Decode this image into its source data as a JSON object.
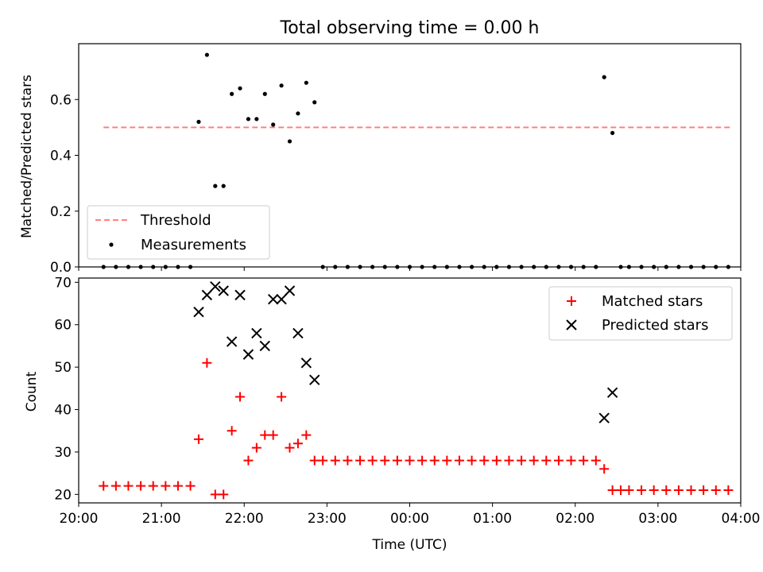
{
  "figure_title": "Total observing time = 0.00 h",
  "chart_data": [
    {
      "type": "scatter",
      "ylabel": "Matched/Predicted stars",
      "xlabel": "",
      "xlim": [
        "20:00",
        "04:00"
      ],
      "ylim": [
        0,
        0.8
      ],
      "yticks": [
        0.0,
        0.2,
        0.4,
        0.6
      ],
      "ytick_labels": [
        "0.0",
        "0.2",
        "0.4",
        "0.6"
      ],
      "legend_position": "lower-left",
      "threshold": {
        "name": "Threshold",
        "value": 0.5,
        "x_start": "20:18",
        "x_end": "03:54",
        "color": "#ff8080"
      },
      "series": [
        {
          "name": "Measurements",
          "color": "#000000",
          "x": [
            "20:18",
            "20:27",
            "20:36",
            "20:45",
            "20:54",
            "21:03",
            "21:12",
            "21:21",
            "21:27",
            "21:33",
            "21:39",
            "21:45",
            "21:51",
            "21:57",
            "22:03",
            "22:09",
            "22:15",
            "22:21",
            "22:27",
            "22:33",
            "22:39",
            "22:45",
            "22:51",
            "22:57",
            "23:06",
            "23:15",
            "23:24",
            "23:33",
            "23:42",
            "23:51",
            "00:00",
            "00:09",
            "00:18",
            "00:27",
            "00:36",
            "00:45",
            "00:54",
            "01:03",
            "01:12",
            "01:21",
            "01:30",
            "01:39",
            "01:48",
            "01:57",
            "02:06",
            "02:15",
            "02:21",
            "02:27",
            "02:33",
            "02:39",
            "02:48",
            "02:57",
            "03:06",
            "03:15",
            "03:24",
            "03:33",
            "03:42",
            "03:51"
          ],
          "y": [
            0,
            0,
            0,
            0,
            0,
            0,
            0,
            0,
            0.52,
            0.76,
            0.29,
            0.29,
            0.62,
            0.64,
            0.53,
            0.53,
            0.62,
            0.51,
            0.65,
            0.45,
            0.55,
            0.66,
            0.59,
            0,
            0,
            0,
            0,
            0,
            0,
            0,
            0,
            0,
            0,
            0,
            0,
            0,
            0,
            0,
            0,
            0,
            0,
            0,
            0,
            0,
            0,
            0,
            0.68,
            0.48,
            0,
            0,
            0,
            0,
            0,
            0,
            0,
            0,
            0,
            0
          ]
        }
      ]
    },
    {
      "type": "scatter",
      "ylabel": "Count",
      "xlabel": "Time (UTC)",
      "xlim": [
        "20:00",
        "04:00"
      ],
      "xticks": [
        "20:00",
        "21:00",
        "22:00",
        "23:00",
        "00:00",
        "01:00",
        "02:00",
        "03:00",
        "04:00"
      ],
      "ylim": [
        18,
        71
      ],
      "yticks": [
        20,
        30,
        40,
        50,
        60,
        70
      ],
      "legend_position": "upper-right",
      "series": [
        {
          "name": "Matched stars",
          "marker": "plus",
          "color": "#ff0000",
          "x": [
            "20:18",
            "20:27",
            "20:36",
            "20:45",
            "20:54",
            "21:03",
            "21:12",
            "21:21",
            "21:27",
            "21:33",
            "21:39",
            "21:45",
            "21:51",
            "21:57",
            "22:03",
            "22:09",
            "22:15",
            "22:21",
            "22:27",
            "22:33",
            "22:39",
            "22:45",
            "22:51",
            "22:57",
            "23:06",
            "23:15",
            "23:24",
            "23:33",
            "23:42",
            "23:51",
            "00:00",
            "00:09",
            "00:18",
            "00:27",
            "00:36",
            "00:45",
            "00:54",
            "01:03",
            "01:12",
            "01:21",
            "01:30",
            "01:39",
            "01:48",
            "01:57",
            "02:06",
            "02:15",
            "02:21",
            "02:27",
            "02:33",
            "02:39",
            "02:48",
            "02:57",
            "03:06",
            "03:15",
            "03:24",
            "03:33",
            "03:42",
            "03:51"
          ],
          "y": [
            22,
            22,
            22,
            22,
            22,
            22,
            22,
            22,
            33,
            51,
            20,
            20,
            35,
            43,
            28,
            31,
            34,
            34,
            43,
            31,
            32,
            34,
            28,
            28,
            28,
            28,
            28,
            28,
            28,
            28,
            28,
            28,
            28,
            28,
            28,
            28,
            28,
            28,
            28,
            28,
            28,
            28,
            28,
            28,
            28,
            28,
            26,
            21,
            21,
            21,
            21,
            21,
            21,
            21,
            21,
            21,
            21,
            21
          ]
        },
        {
          "name": "Predicted stars",
          "marker": "x",
          "color": "#000000",
          "x": [
            "21:27",
            "21:33",
            "21:39",
            "21:45",
            "21:51",
            "21:57",
            "22:03",
            "22:09",
            "22:15",
            "22:21",
            "22:27",
            "22:33",
            "22:39",
            "22:45",
            "22:51",
            "02:21",
            "02:27"
          ],
          "y": [
            63,
            67,
            69,
            68,
            56,
            67,
            53,
            58,
            55,
            66,
            66,
            68,
            58,
            51,
            47,
            38,
            44
          ]
        }
      ]
    }
  ]
}
